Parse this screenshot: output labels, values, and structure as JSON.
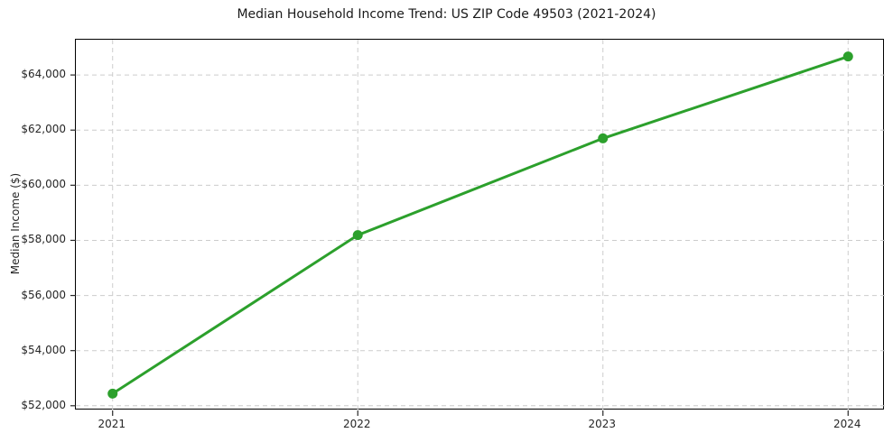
{
  "chart_data": {
    "type": "line",
    "title": "Median Household Income Trend: US ZIP Code 49503 (2021-2024)",
    "xlabel": "",
    "ylabel": "Median Income ($)",
    "x": [
      2021,
      2022,
      2023,
      2024
    ],
    "values": [
      52440,
      58190,
      61700,
      64670
    ],
    "xtick_labels": [
      "2021",
      "2022",
      "2023",
      "2024"
    ],
    "ytick_values": [
      52000,
      54000,
      56000,
      58000,
      60000,
      62000,
      64000
    ],
    "ytick_labels": [
      "$52,000",
      "$54,000",
      "$56,000",
      "$58,000",
      "$60,000",
      "$62,000",
      "$64,000"
    ],
    "xlim": [
      2020.85,
      2024.15
    ],
    "ylim": [
      51830,
      65280
    ],
    "grid": true,
    "grid_style": "dashed",
    "legend_position": "none",
    "line_color": "#2ca02c",
    "marker": "circle",
    "marker_color": "#2ca02c",
    "grid_color": "#cccccc",
    "axis_color": "#000000",
    "tick_color": "#262626",
    "background_color": "#ffffff"
  }
}
